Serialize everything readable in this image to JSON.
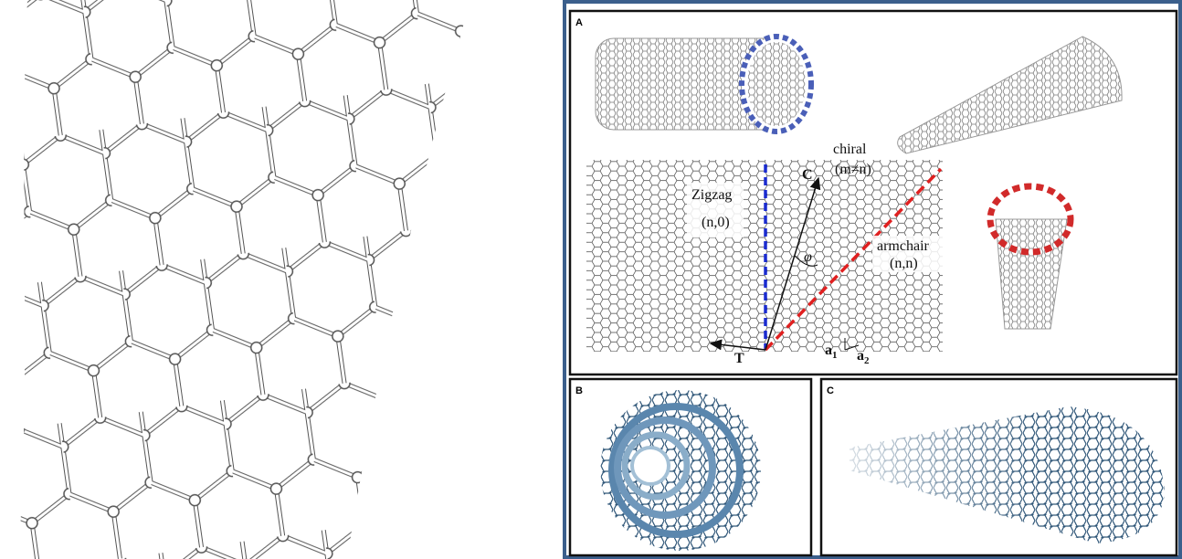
{
  "panels": {
    "a": {
      "label": "A",
      "chiral": "chiral",
      "chiral_index": "(m≠n)",
      "zigzag": "Zigzag",
      "zigzag_index": "(n,0)",
      "armchair": "armchair",
      "armchair_index": "(n,n)",
      "vector_c": "C",
      "vector_t": "T",
      "angle": "φ",
      "a1": {
        "base": "a",
        "sub": "1"
      },
      "a2": {
        "base": "a",
        "sub": "2"
      }
    },
    "b": {
      "label": "B"
    },
    "c": {
      "label": "C"
    }
  }
}
